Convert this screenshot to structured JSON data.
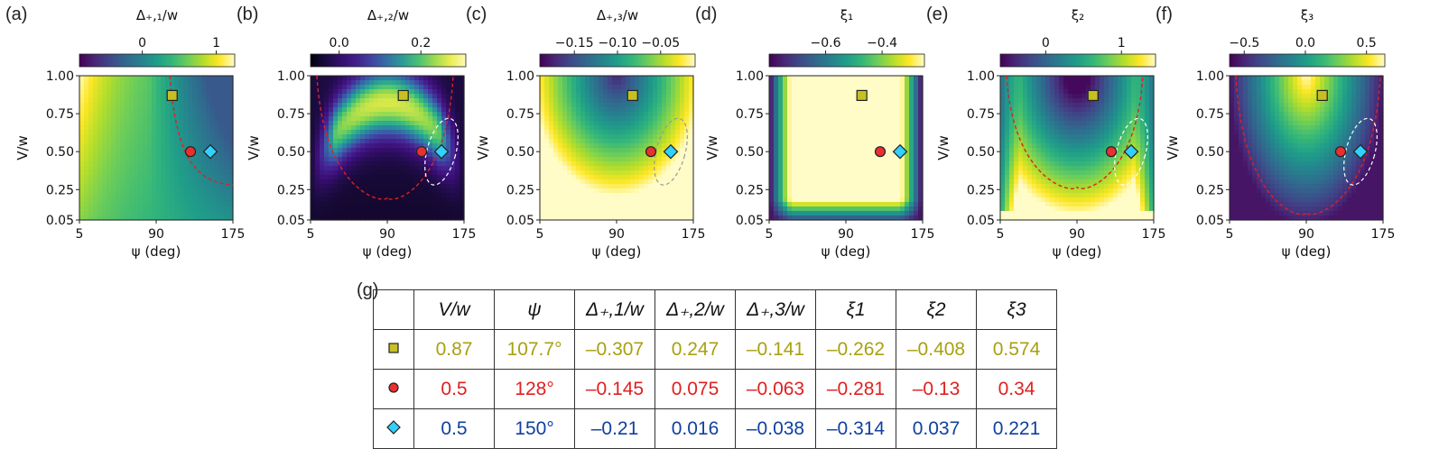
{
  "panels": [
    {
      "letter": "(a)",
      "cb_title": "Δ₊,₁/w",
      "cb_ticks": [
        {
          "v": 0,
          "label": "0"
        },
        {
          "v": 1,
          "label": "1"
        }
      ],
      "cb_range": [
        -0.85,
        1.25
      ],
      "cmap": "viridis",
      "overlay": "a"
    },
    {
      "letter": "(b)",
      "cb_title": "Δ₊,₂/w",
      "cb_ticks": [
        {
          "v": 0,
          "label": "0.0"
        },
        {
          "v": 0.2,
          "label": "0.2"
        }
      ],
      "cb_range": [
        -0.07,
        0.31
      ],
      "cmap": "inferno_like",
      "overlay": "b"
    },
    {
      "letter": "(c)",
      "cb_title": "Δ₊,₃/w",
      "cb_ticks": [
        {
          "v": -0.15,
          "label": "−0.15"
        },
        {
          "v": -0.1,
          "label": "−0.10"
        },
        {
          "v": -0.05,
          "label": "−0.05"
        }
      ],
      "cb_range": [
        -0.19,
        -0.01
      ],
      "cmap": "viridis",
      "overlay": "c"
    },
    {
      "letter": "(d)",
      "cb_title": "ξ₁",
      "cb_ticks": [
        {
          "v": -0.6,
          "label": "−0.6"
        },
        {
          "v": -0.4,
          "label": "−0.4"
        }
      ],
      "cb_range": [
        -0.8,
        -0.25
      ],
      "cmap": "viridis",
      "overlay": "d"
    },
    {
      "letter": "(e)",
      "cb_title": "ξ₂",
      "cb_ticks": [
        {
          "v": 0,
          "label": "0"
        },
        {
          "v": 1,
          "label": "1"
        }
      ],
      "cb_range": [
        -0.6,
        1.45
      ],
      "cmap": "viridis",
      "overlay": "e"
    },
    {
      "letter": "(f)",
      "cb_title": "ξ₃",
      "cb_ticks": [
        {
          "v": -0.5,
          "label": "−0.5"
        },
        {
          "v": 0,
          "label": "0.0"
        },
        {
          "v": 0.5,
          "label": "0.5"
        }
      ],
      "cb_range": [
        -0.62,
        0.65
      ],
      "cmap": "viridis",
      "overlay": "f"
    }
  ],
  "axes": {
    "xlabel": "ψ (deg)",
    "ylabel": "V/w",
    "xticks": [
      {
        "v": 5,
        "label": "5"
      },
      {
        "v": 90,
        "label": "90"
      },
      {
        "v": 175,
        "label": "175"
      }
    ],
    "yticks": [
      {
        "v": 0.05,
        "label": "0.05"
      },
      {
        "v": 0.25,
        "label": "0.25"
      },
      {
        "v": 0.5,
        "label": "0.50"
      },
      {
        "v": 0.75,
        "label": "0.75"
      },
      {
        "v": 1.0,
        "label": "1.00"
      }
    ],
    "xlim": [
      5,
      175
    ],
    "ylim": [
      0.05,
      1.0
    ]
  },
  "markers": [
    {
      "shape": "square",
      "psi": 107.7,
      "V": 0.87,
      "fill": "#c8c020"
    },
    {
      "shape": "circle",
      "psi": 128,
      "V": 0.5,
      "fill": "#e83030"
    },
    {
      "shape": "diamond",
      "psi": 150,
      "V": 0.5,
      "fill": "#30d0ff"
    }
  ],
  "table": {
    "letter": "(g)",
    "headers": [
      "V/w",
      "ψ",
      "Δ₊,1/w",
      "Δ₊,2/w",
      "Δ₊,3/w",
      "ξ1",
      "ξ2",
      "ξ3"
    ],
    "rows": [
      {
        "color": "#a8a010",
        "cells": [
          "0.87",
          "107.7°",
          "–0.307",
          "0.247",
          "–0.141",
          "–0.262",
          "–0.408",
          "0.574"
        ]
      },
      {
        "color": "#e02020",
        "cells": [
          "0.5",
          "128°",
          "–0.145",
          "0.075",
          "–0.063",
          "–0.281",
          "–0.13",
          "0.34"
        ]
      },
      {
        "color": "#1040a0",
        "cells": [
          "0.5",
          "150°",
          "–0.21",
          "0.016",
          "–0.038",
          "–0.314",
          "0.037",
          "0.221"
        ]
      }
    ]
  },
  "chart_data": [
    {
      "type": "heatmap",
      "title": "Δ₊,₁/w",
      "xlabel": "ψ (deg)",
      "ylabel": "V/w",
      "xlim": [
        5,
        175
      ],
      "ylim": [
        0.05,
        1.0
      ],
      "colorbar_ticks": [
        0,
        1
      ],
      "points": [
        {
          "x": 107.7,
          "y": 0.87
        },
        {
          "x": 128,
          "y": 0.5
        },
        {
          "x": 150,
          "y": 0.5
        }
      ]
    },
    {
      "type": "heatmap",
      "title": "Δ₊,₂/w",
      "xlabel": "ψ (deg)",
      "ylabel": "V/w",
      "xlim": [
        5,
        175
      ],
      "ylim": [
        0.05,
        1.0
      ],
      "colorbar_ticks": [
        0.0,
        0.2
      ],
      "points": [
        {
          "x": 107.7,
          "y": 0.87
        },
        {
          "x": 128,
          "y": 0.5
        },
        {
          "x": 150,
          "y": 0.5
        }
      ]
    },
    {
      "type": "heatmap",
      "title": "Δ₊,₃/w",
      "xlabel": "ψ (deg)",
      "ylabel": "V/w",
      "xlim": [
        5,
        175
      ],
      "ylim": [
        0.05,
        1.0
      ],
      "colorbar_ticks": [
        -0.15,
        -0.1,
        -0.05
      ],
      "points": [
        {
          "x": 107.7,
          "y": 0.87
        },
        {
          "x": 128,
          "y": 0.5
        },
        {
          "x": 150,
          "y": 0.5
        }
      ]
    },
    {
      "type": "heatmap",
      "title": "ξ₁",
      "xlabel": "ψ (deg)",
      "ylabel": "V/w",
      "xlim": [
        5,
        175
      ],
      "ylim": [
        0.05,
        1.0
      ],
      "colorbar_ticks": [
        -0.6,
        -0.4
      ],
      "points": [
        {
          "x": 107.7,
          "y": 0.87
        },
        {
          "x": 128,
          "y": 0.5
        },
        {
          "x": 150,
          "y": 0.5
        }
      ]
    },
    {
      "type": "heatmap",
      "title": "ξ₂",
      "xlabel": "ψ (deg)",
      "ylabel": "V/w",
      "xlim": [
        5,
        175
      ],
      "ylim": [
        0.05,
        1.0
      ],
      "colorbar_ticks": [
        0,
        1
      ],
      "points": [
        {
          "x": 107.7,
          "y": 0.87
        },
        {
          "x": 128,
          "y": 0.5
        },
        {
          "x": 150,
          "y": 0.5
        }
      ]
    },
    {
      "type": "heatmap",
      "title": "ξ₃",
      "xlabel": "ψ (deg)",
      "ylabel": "V/w",
      "xlim": [
        5,
        175
      ],
      "ylim": [
        0.05,
        1.0
      ],
      "colorbar_ticks": [
        -0.5,
        0.0,
        0.5
      ],
      "points": [
        {
          "x": 107.7,
          "y": 0.87
        },
        {
          "x": 128,
          "y": 0.5
        },
        {
          "x": 150,
          "y": 0.5
        }
      ]
    }
  ]
}
